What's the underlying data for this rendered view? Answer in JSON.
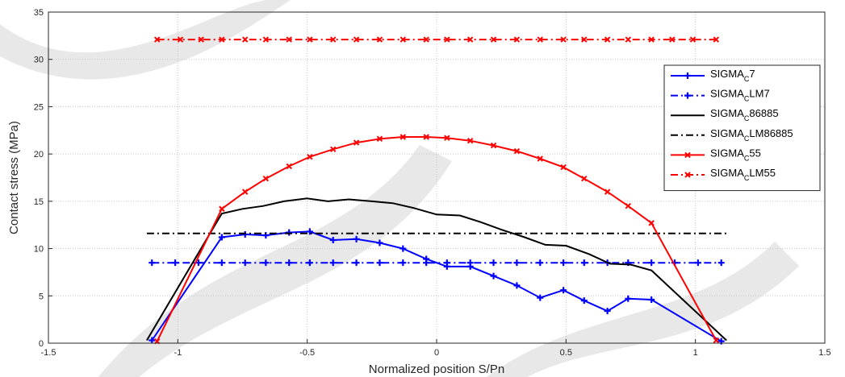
{
  "chart_data": {
    "type": "line",
    "xlabel": "Normalized position S/Pn",
    "ylabel": "Contact stress (MPa)",
    "xlim": [
      -1.5,
      1.5
    ],
    "ylim": [
      0,
      35
    ],
    "xticks": [
      -1.5,
      -1,
      -0.5,
      0,
      0.5,
      1,
      1.5
    ],
    "yticks": [
      0,
      5,
      10,
      15,
      20,
      25,
      30,
      35
    ],
    "xtick_labels": [
      "-1.5",
      "-1",
      "-0.5",
      "0",
      "0.5",
      "1",
      "1.5"
    ],
    "ytick_labels": [
      "0",
      "5",
      "10",
      "15",
      "20",
      "25",
      "30",
      "35"
    ],
    "grid": true,
    "legend_position": "right",
    "series": [
      {
        "name": "SIGMA_C7",
        "label_main": "SIGMA",
        "label_sub": "C",
        "label_suffix": "7",
        "color": "#0000ff",
        "dash": "solid",
        "marker": "plus",
        "x": [
          -1.1,
          -0.83,
          -0.74,
          -0.66,
          -0.57,
          -0.49,
          -0.4,
          -0.31,
          -0.22,
          -0.13,
          -0.04,
          0.04,
          0.13,
          0.22,
          0.31,
          0.4,
          0.49,
          0.57,
          0.66,
          0.74,
          0.83,
          1.1
        ],
        "y": [
          0.3,
          11.2,
          11.5,
          11.4,
          11.7,
          11.8,
          10.9,
          11.0,
          10.6,
          10.0,
          8.9,
          8.1,
          8.1,
          7.1,
          6.1,
          4.8,
          5.6,
          4.5,
          3.4,
          4.7,
          4.6,
          0.2
        ]
      },
      {
        "name": "SIGMA_CLM7",
        "label_main": "SIGMA",
        "label_sub": "C",
        "label_suffix": "LM7",
        "color": "#0000ff",
        "dash": "dashdot",
        "marker": "plus",
        "x": [
          -1.1,
          -1.01,
          -0.92,
          -0.83,
          -0.74,
          -0.66,
          -0.57,
          -0.49,
          -0.4,
          -0.31,
          -0.22,
          -0.13,
          -0.04,
          0.04,
          0.13,
          0.22,
          0.31,
          0.4,
          0.49,
          0.57,
          0.66,
          0.74,
          0.83,
          0.92,
          1.01,
          1.1
        ],
        "y": [
          8.5,
          8.5,
          8.5,
          8.5,
          8.5,
          8.5,
          8.5,
          8.5,
          8.5,
          8.5,
          8.5,
          8.5,
          8.5,
          8.5,
          8.5,
          8.5,
          8.5,
          8.5,
          8.5,
          8.5,
          8.5,
          8.5,
          8.5,
          8.5,
          8.5,
          8.5
        ]
      },
      {
        "name": "SIGMA_C86885",
        "label_main": "SIGMA",
        "label_sub": "C",
        "label_suffix": "86885",
        "color": "#000000",
        "dash": "solid",
        "marker": "none",
        "x": [
          -1.12,
          -0.83,
          -0.75,
          -0.67,
          -0.59,
          -0.5,
          -0.42,
          -0.34,
          -0.25,
          -0.17,
          -0.09,
          0.0,
          0.09,
          0.17,
          0.25,
          0.34,
          0.42,
          0.5,
          0.59,
          0.67,
          0.75,
          0.83,
          1.12
        ],
        "y": [
          0.3,
          13.7,
          14.2,
          14.5,
          15.0,
          15.3,
          15.0,
          15.2,
          15.0,
          14.8,
          14.3,
          13.6,
          13.5,
          12.8,
          12.0,
          11.2,
          10.4,
          10.3,
          9.4,
          8.4,
          8.3,
          7.7,
          0.3
        ]
      },
      {
        "name": "SIGMA_CLM86885",
        "label_main": "SIGMA",
        "label_sub": "C",
        "label_suffix": "LM86885",
        "color": "#000000",
        "dash": "dashdot",
        "marker": "none",
        "x": [
          -1.12,
          1.12
        ],
        "y": [
          11.6,
          11.6
        ]
      },
      {
        "name": "SIGMA_C55",
        "label_main": "SIGMA",
        "label_sub": "C",
        "label_suffix": "55",
        "color": "#ff0000",
        "dash": "solid",
        "marker": "x",
        "x": [
          -1.08,
          -0.83,
          -0.74,
          -0.66,
          -0.57,
          -0.49,
          -0.4,
          -0.31,
          -0.22,
          -0.13,
          -0.04,
          0.04,
          0.13,
          0.22,
          0.31,
          0.4,
          0.49,
          0.57,
          0.66,
          0.74,
          0.83,
          1.08
        ],
        "y": [
          0.2,
          14.2,
          16.0,
          17.4,
          18.7,
          19.7,
          20.5,
          21.2,
          21.6,
          21.8,
          21.8,
          21.7,
          21.4,
          20.9,
          20.3,
          19.5,
          18.6,
          17.4,
          16.0,
          14.5,
          12.7,
          0.3
        ]
      },
      {
        "name": "SIGMA_CLM55",
        "label_main": "SIGMA",
        "label_sub": "C",
        "label_suffix": "LM55",
        "color": "#ff0000",
        "dash": "dashdot",
        "marker": "x",
        "x": [
          -1.08,
          -0.99,
          -0.91,
          -0.83,
          -0.74,
          -0.66,
          -0.57,
          -0.49,
          -0.4,
          -0.31,
          -0.22,
          -0.13,
          -0.04,
          0.04,
          0.13,
          0.22,
          0.31,
          0.4,
          0.49,
          0.57,
          0.66,
          0.74,
          0.83,
          0.91,
          0.99,
          1.08
        ],
        "y": [
          32.1,
          32.1,
          32.1,
          32.1,
          32.1,
          32.1,
          32.1,
          32.1,
          32.1,
          32.1,
          32.1,
          32.1,
          32.1,
          32.1,
          32.1,
          32.1,
          32.1,
          32.1,
          32.1,
          32.1,
          32.1,
          32.1,
          32.1,
          32.1,
          32.1,
          32.1
        ]
      }
    ]
  }
}
